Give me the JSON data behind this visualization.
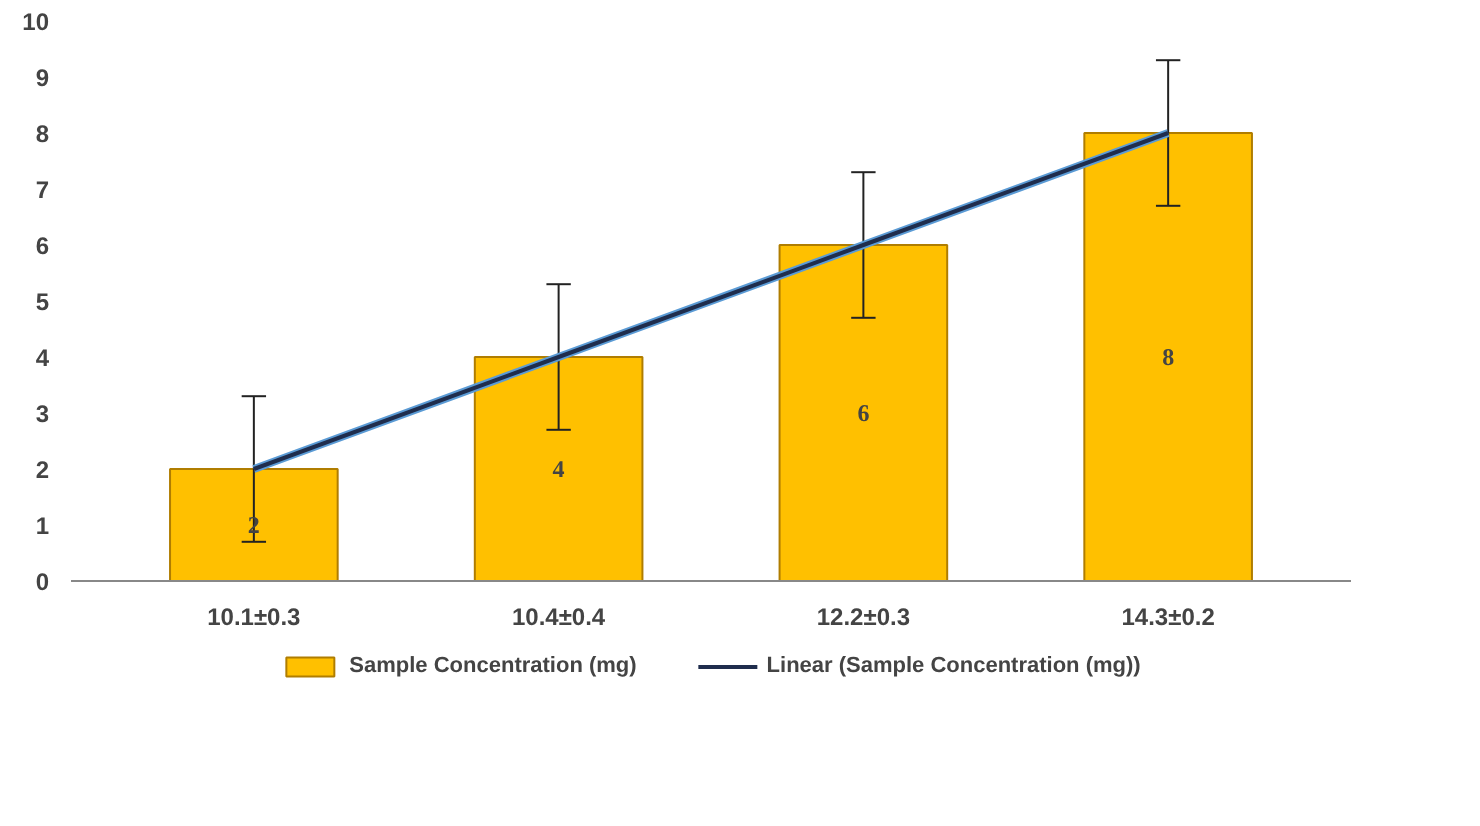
{
  "chart_data": {
    "type": "bar",
    "categories": [
      "10.1±0.3",
      "10.4±0.4",
      "12.2±0.3",
      "14.3±0.2"
    ],
    "series": [
      {
        "name": "Sample Concentration (mg)",
        "color": "#ffc000",
        "values": [
          2,
          4,
          6,
          8
        ],
        "errors": [
          1.3,
          1.3,
          1.3,
          1.3
        ],
        "value_labels": [
          "2",
          "4",
          "6",
          "8"
        ]
      },
      {
        "name": "Linear (Sample Concentration (mg))",
        "type": "line",
        "color": "#1f2d4d",
        "x": [
          "10.1±0.3",
          "10.4±0.4",
          "12.2±0.3",
          "14.3±0.2"
        ],
        "values": [
          2,
          4,
          6,
          8
        ]
      }
    ],
    "ylim": [
      0,
      10
    ],
    "yticks": [
      0,
      1,
      2,
      3,
      4,
      5,
      6,
      7,
      8,
      9,
      10
    ],
    "legend": "bottom"
  }
}
